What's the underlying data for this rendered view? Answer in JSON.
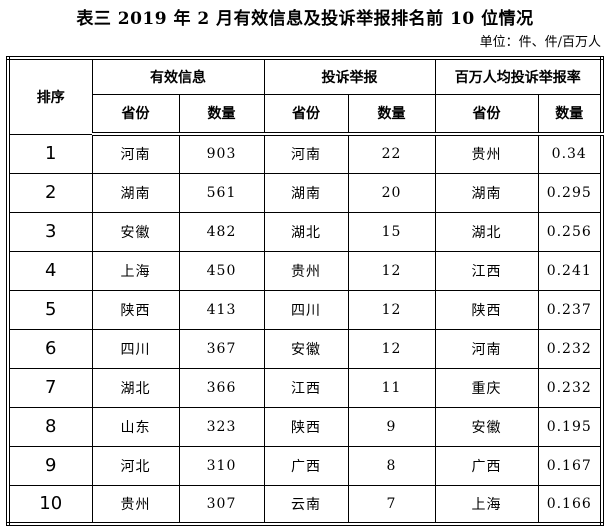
{
  "page": {
    "title": "表三 2019 年 2 月有效信息及投诉举报排名前 10 位情况",
    "unit_note": "单位：件、件/百万人"
  },
  "table": {
    "rank_header": "排序",
    "column_groups": [
      {
        "label": "有效信息",
        "subcolumns": [
          "省份",
          "数量"
        ]
      },
      {
        "label": "投诉举报",
        "subcolumns": [
          "省份",
          "数量"
        ]
      },
      {
        "label": "百万人均投诉举报率",
        "subcolumns": [
          "省份",
          "数量"
        ]
      }
    ],
    "rows": [
      {
        "rank": "1",
        "valid_info": {
          "province": "河南",
          "count": "903"
        },
        "complaints": {
          "province": "河南",
          "count": "22"
        },
        "per_million": {
          "province": "贵州",
          "rate": "0.34"
        }
      },
      {
        "rank": "2",
        "valid_info": {
          "province": "湖南",
          "count": "561"
        },
        "complaints": {
          "province": "湖南",
          "count": "20"
        },
        "per_million": {
          "province": "湖南",
          "rate": "0.295"
        }
      },
      {
        "rank": "3",
        "valid_info": {
          "province": "安徽",
          "count": "482"
        },
        "complaints": {
          "province": "湖北",
          "count": "15"
        },
        "per_million": {
          "province": "湖北",
          "rate": "0.256"
        }
      },
      {
        "rank": "4",
        "valid_info": {
          "province": "上海",
          "count": "450"
        },
        "complaints": {
          "province": "贵州",
          "count": "12"
        },
        "per_million": {
          "province": "江西",
          "rate": "0.241"
        }
      },
      {
        "rank": "5",
        "valid_info": {
          "province": "陕西",
          "count": "413"
        },
        "complaints": {
          "province": "四川",
          "count": "12"
        },
        "per_million": {
          "province": "陕西",
          "rate": "0.237"
        }
      },
      {
        "rank": "6",
        "valid_info": {
          "province": "四川",
          "count": "367"
        },
        "complaints": {
          "province": "安徽",
          "count": "12"
        },
        "per_million": {
          "province": "河南",
          "rate": "0.232"
        }
      },
      {
        "rank": "7",
        "valid_info": {
          "province": "湖北",
          "count": "366"
        },
        "complaints": {
          "province": "江西",
          "count": "11"
        },
        "per_million": {
          "province": "重庆",
          "rate": "0.232"
        }
      },
      {
        "rank": "8",
        "valid_info": {
          "province": "山东",
          "count": "323"
        },
        "complaints": {
          "province": "陕西",
          "count": "9"
        },
        "per_million": {
          "province": "安徽",
          "rate": "0.195"
        }
      },
      {
        "rank": "9",
        "valid_info": {
          "province": "河北",
          "count": "310"
        },
        "complaints": {
          "province": "广西",
          "count": "8"
        },
        "per_million": {
          "province": "广西",
          "rate": "0.167"
        }
      },
      {
        "rank": "10",
        "valid_info": {
          "province": "贵州",
          "count": "307"
        },
        "complaints": {
          "province": "云南",
          "count": "7"
        },
        "per_million": {
          "province": "上海",
          "rate": "0.166"
        }
      }
    ]
  }
}
